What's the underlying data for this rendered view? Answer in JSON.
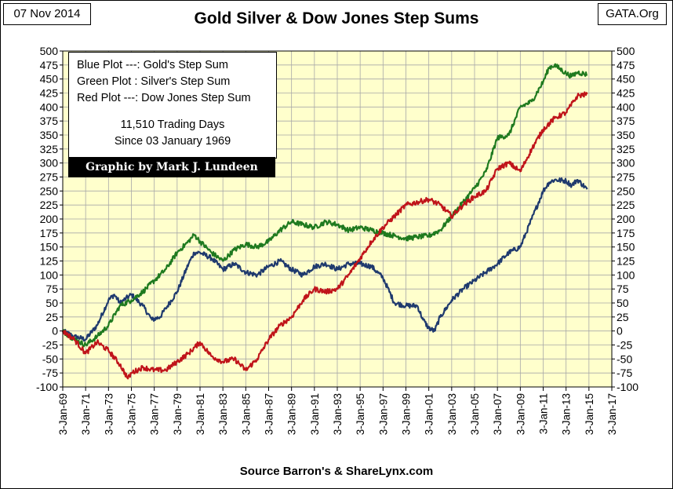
{
  "header": {
    "date": "07 Nov 2014",
    "title": "Gold Silver & Dow Jones Step Sums",
    "site": "GATA.Org"
  },
  "legend": {
    "line1": "Blue Plot ---:  Gold's Step Sum",
    "line2": "Green Plot :  Silver's Step Sum",
    "line3": "Red Plot ---: Dow Jones Step Sum",
    "line4": "11,510 Trading Days",
    "line5": "Since 03 January 1969",
    "credit": "Graphic by Mark J. Lundeen"
  },
  "footer": {
    "source": "Source Barron's & ShareLynx.com"
  },
  "chart_data": {
    "type": "line",
    "background": "#ffffcc",
    "grid": true,
    "ylim": [
      -100,
      500
    ],
    "yticks": [
      -100,
      -75,
      -50,
      -25,
      0,
      25,
      50,
      75,
      100,
      125,
      150,
      175,
      200,
      225,
      250,
      275,
      300,
      325,
      350,
      375,
      400,
      425,
      450,
      475,
      500
    ],
    "xlim": [
      1969,
      2017
    ],
    "x_tick_years": [
      1969,
      1971,
      1973,
      1975,
      1977,
      1979,
      1981,
      1983,
      1985,
      1987,
      1989,
      1991,
      1993,
      1995,
      1997,
      1999,
      2001,
      2003,
      2005,
      2007,
      2009,
      2011,
      2013,
      2015,
      2017
    ],
    "x_tick_labels": [
      "3-Jan-69",
      "3-Jan-71",
      "3-Jan-73",
      "3-Jan-75",
      "3-Jan-77",
      "3-Jan-79",
      "3-Jan-81",
      "3-Jan-83",
      "3-Jan-85",
      "3-Jan-87",
      "3-Jan-89",
      "3-Jan-91",
      "3-Jan-93",
      "3-Jan-95",
      "3-Jan-97",
      "3-Jan-99",
      "3-Jan-01",
      "3-Jan-03",
      "3-Jan-05",
      "3-Jan-07",
      "3-Jan-09",
      "3-Jan-11",
      "3-Jan-13",
      "3-Jan-15",
      "3-Jan-17"
    ],
    "series": [
      {
        "color": "#1f3a6e",
        "x": [
          1969,
          1970,
          1971,
          1972,
          1973,
          1973.5,
          1974,
          1975,
          1976,
          1976.8,
          1977.5,
          1978,
          1979,
          1980,
          1980.5,
          1981,
          1982,
          1983,
          1984,
          1985,
          1986,
          1987,
          1988,
          1989,
          1990,
          1991,
          1992,
          1993,
          1994,
          1995,
          1996,
          1997,
          1998,
          1999,
          2000,
          2000.5,
          2001,
          2001.5,
          2002,
          2003,
          2004,
          2005,
          2006,
          2007,
          2008,
          2009,
          2010,
          2011,
          2011.5,
          2012,
          2013,
          2013.5,
          2014,
          2014.85
        ],
        "y": [
          0,
          -10,
          -15,
          10,
          55,
          65,
          50,
          65,
          45,
          20,
          25,
          40,
          70,
          120,
          140,
          140,
          130,
          110,
          120,
          105,
          100,
          115,
          125,
          110,
          100,
          115,
          120,
          110,
          120,
          120,
          115,
          95,
          50,
          45,
          45,
          20,
          5,
          0,
          25,
          55,
          75,
          90,
          105,
          120,
          140,
          150,
          200,
          250,
          265,
          270,
          268,
          260,
          270,
          253
        ]
      },
      {
        "color": "#1f7a1f",
        "x": [
          1969,
          1970,
          1971,
          1972,
          1973,
          1974,
          1975,
          1976,
          1977,
          1978,
          1979,
          1980,
          1980.5,
          1981,
          1982,
          1983,
          1984,
          1985,
          1986,
          1987,
          1988,
          1989,
          1990,
          1991,
          1992,
          1993,
          1994,
          1995,
          1996,
          1997,
          1998,
          1999,
          2000,
          2001,
          2002,
          2003,
          2004,
          2005,
          2006,
          2007,
          2008,
          2009,
          2010,
          2011,
          2011.5,
          2012,
          2013,
          2013.5,
          2014,
          2014.85
        ],
        "y": [
          0,
          -15,
          -25,
          -10,
          10,
          45,
          55,
          70,
          90,
          110,
          140,
          160,
          172,
          160,
          140,
          125,
          145,
          155,
          150,
          160,
          180,
          195,
          190,
          185,
          195,
          190,
          180,
          185,
          180,
          175,
          170,
          165,
          168,
          170,
          180,
          205,
          230,
          255,
          285,
          345,
          350,
          400,
          410,
          445,
          470,
          475,
          460,
          455,
          462,
          458
        ]
      },
      {
        "color": "#c0141a",
        "x": [
          1969,
          1970,
          1971,
          1972,
          1973,
          1974,
          1974.7,
          1975,
          1976,
          1977,
          1978,
          1979,
          1980,
          1981,
          1982,
          1983,
          1984,
          1985,
          1986,
          1987,
          1988,
          1989,
          1990,
          1991,
          1992,
          1993,
          1994,
          1995,
          1996,
          1997,
          1998,
          1999,
          2000,
          2001,
          2002,
          2003,
          2004,
          2005,
          2006,
          2007,
          2008,
          2009,
          2010,
          2011,
          2012,
          2013,
          2014,
          2014.85
        ],
        "y": [
          0,
          -15,
          -40,
          -20,
          -35,
          -60,
          -85,
          -75,
          -65,
          -70,
          -70,
          -55,
          -40,
          -20,
          -45,
          -55,
          -50,
          -70,
          -50,
          -15,
          10,
          25,
          55,
          75,
          70,
          75,
          100,
          130,
          160,
          185,
          205,
          225,
          230,
          235,
          225,
          205,
          225,
          240,
          250,
          290,
          300,
          285,
          325,
          360,
          380,
          390,
          420,
          423
        ]
      }
    ]
  }
}
